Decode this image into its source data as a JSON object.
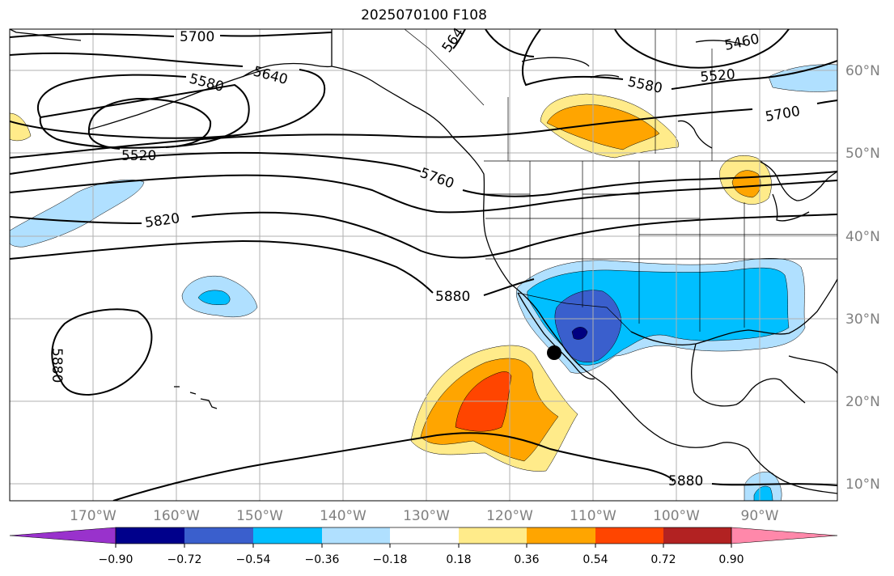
{
  "title": "2025070100 F108",
  "map": {
    "projection": "PlateCarree",
    "lon_range": [
      -180,
      -81
    ],
    "lat_range": [
      8,
      65
    ],
    "gridlines": true,
    "lat_labels": [
      "60°N",
      "50°N",
      "40°N",
      "30°N",
      "20°N",
      "10°N"
    ],
    "lon_labels": [
      "170°W",
      "160°W",
      "150°W",
      "140°W",
      "130°W",
      "120°W",
      "110°W",
      "100°W",
      "90°W"
    ],
    "marker": {
      "lon": -114.5,
      "lat": 26,
      "color": "#000000"
    },
    "contour_labels": [
      "5700",
      "5640",
      "5580",
      "5520",
      "5460",
      "5580",
      "5520",
      "5700",
      "5760",
      "5820",
      "5880",
      "5880",
      "5880",
      "564"
    ],
    "colors": {
      "land_line": "#000000",
      "grid": "#b0b0b0",
      "light_yellow": "#ffeb8a",
      "orange": "#ffa500",
      "red_orange": "#ff4500",
      "light_blue": "#b0e0ff",
      "sky_blue": "#00bfff",
      "royal_blue": "#3a5fcd",
      "navy": "#000080"
    }
  },
  "colorbar": {
    "tick_labels": [
      "−0.90",
      "−0.72",
      "−0.54",
      "−0.36",
      "−0.18",
      "0.18",
      "0.36",
      "0.54",
      "0.72",
      "0.90"
    ],
    "segments": [
      "#9932cc",
      "#00008b",
      "#3a5fcd",
      "#00bfff",
      "#b0e0ff",
      "#ffffff",
      "#ffeb8a",
      "#ffa500",
      "#ff4500",
      "#b22222",
      "#ff88aa"
    ]
  }
}
